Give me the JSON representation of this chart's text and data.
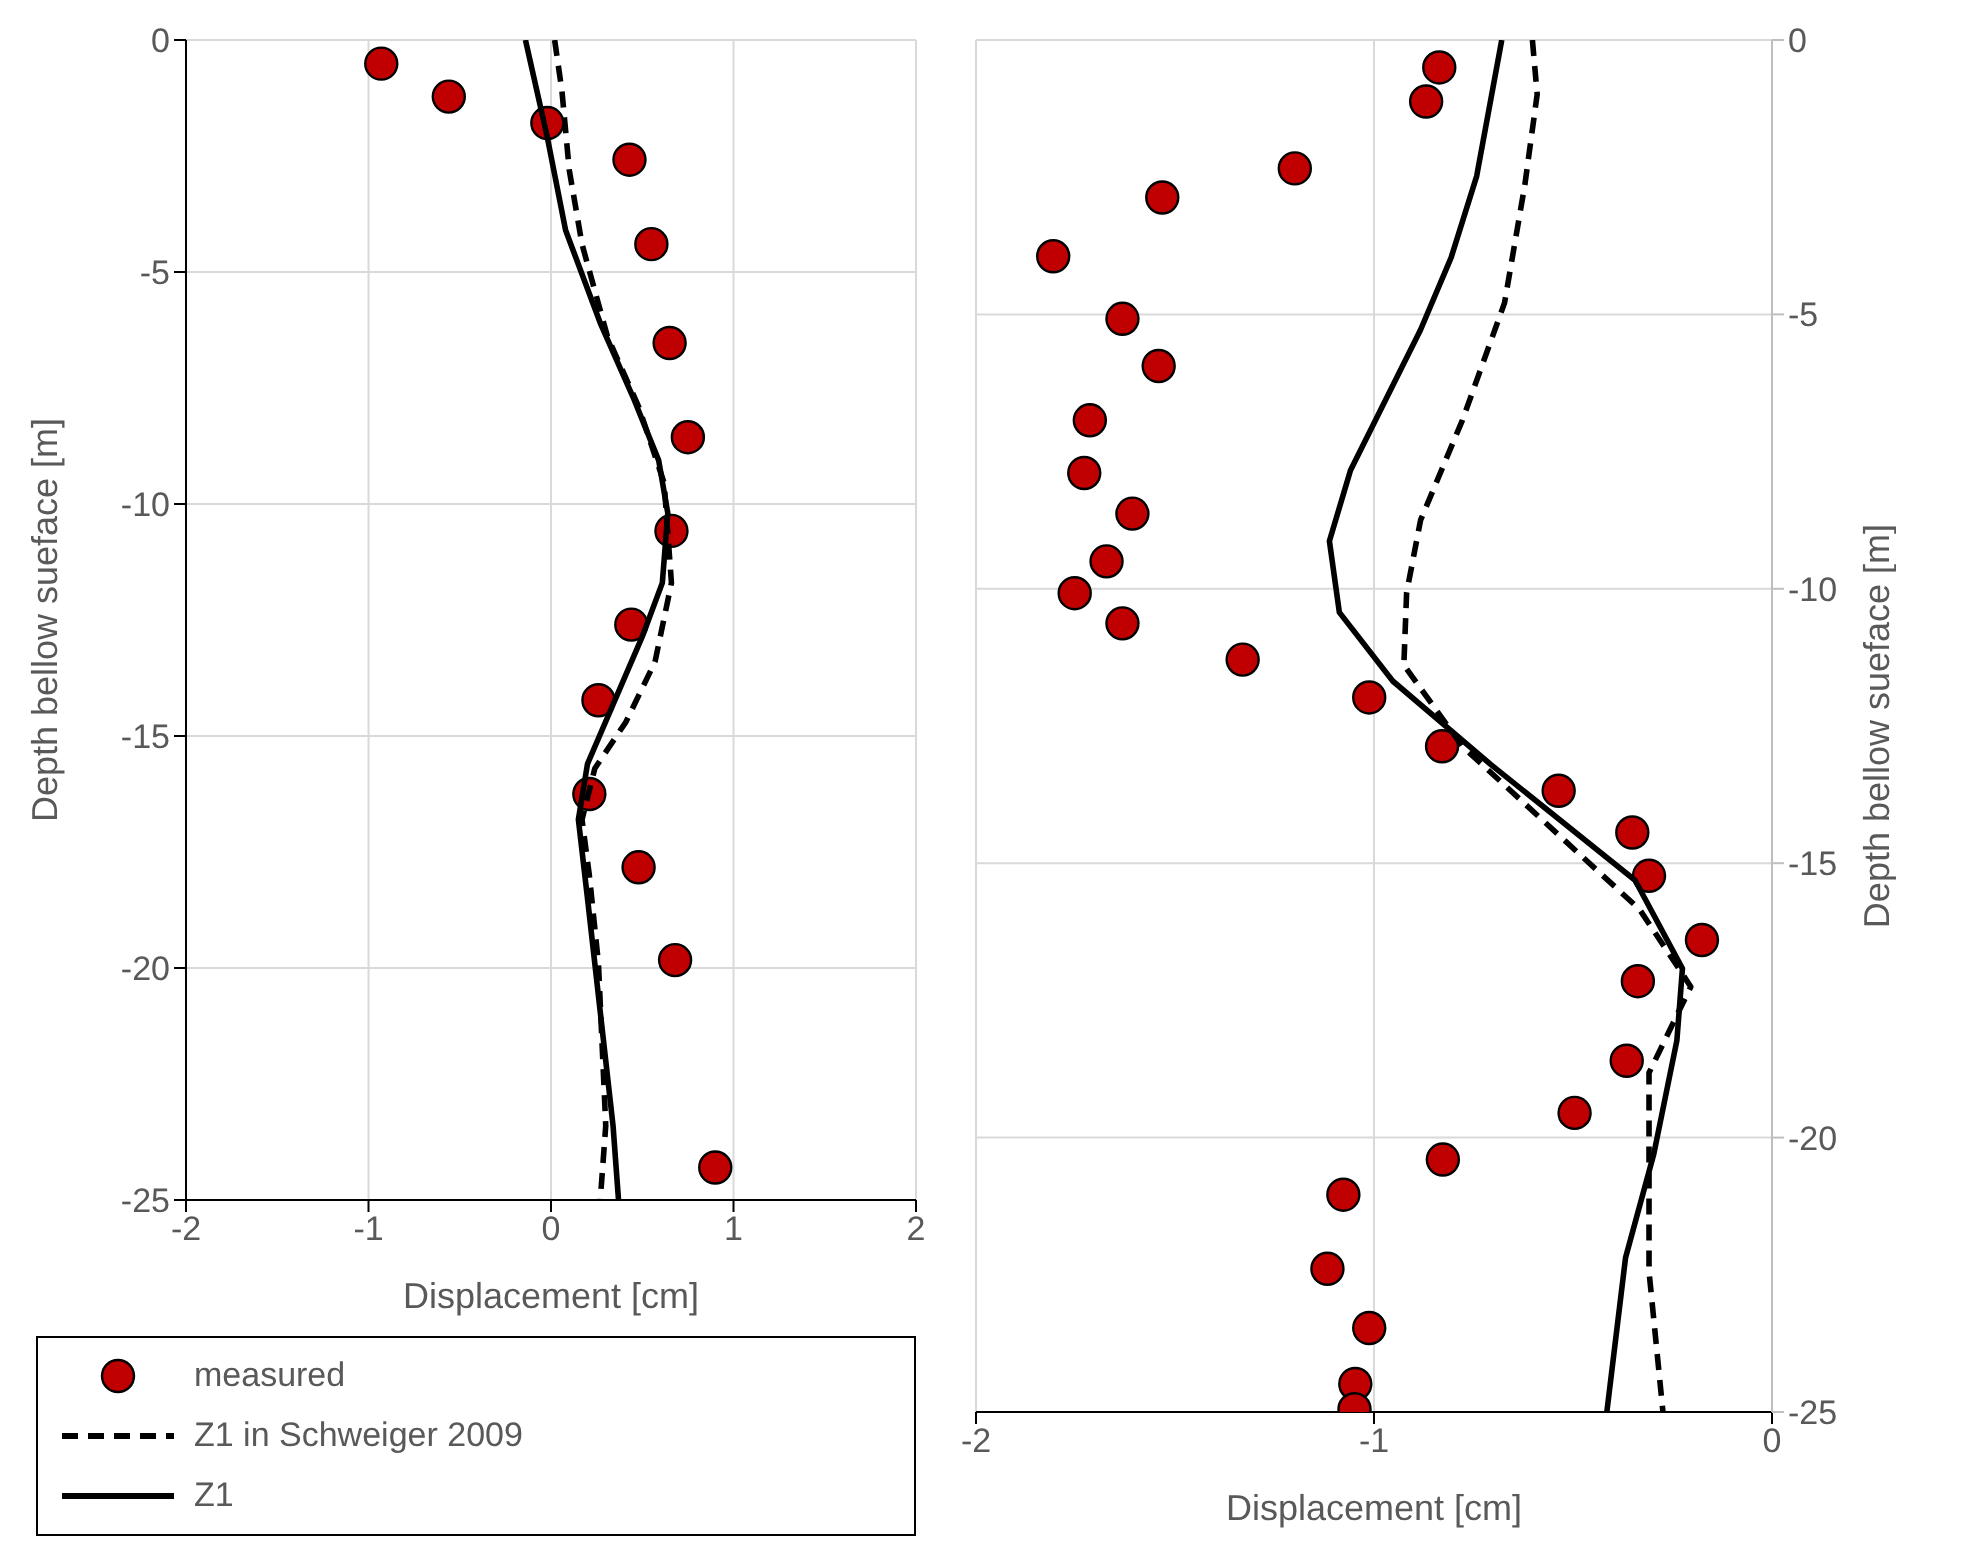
{
  "chart_data": [
    {
      "type": "scatter",
      "xlabel": "Displacement [cm]",
      "ylabel": "Depth bellow sueface  [m]",
      "xlim": [
        -2,
        2
      ],
      "xticks": [
        -2,
        -1,
        0,
        1,
        2
      ],
      "ylim": [
        -25,
        0
      ],
      "yticks": [
        0,
        -5,
        -10,
        -15,
        -20,
        -25
      ],
      "grid": true,
      "legend": "bottom",
      "series": [
        {
          "name": "measured",
          "type": "scatter",
          "marker": "circle",
          "color": "#c00000",
          "x": [
            -0.93,
            -0.56,
            -0.02,
            0.43,
            0.55,
            0.65,
            0.75,
            0.66,
            0.44,
            0.26,
            0.21,
            0.48,
            0.68,
            0.9
          ],
          "values": [
            -0.51,
            -1.22,
            -1.79,
            -2.58,
            -4.4,
            -6.53,
            -8.56,
            -10.58,
            -12.6,
            -14.23,
            -16.25,
            -17.83,
            -19.83,
            -24.3
          ]
        },
        {
          "name": "Z1 in Schweiger 2009",
          "type": "line",
          "marker": "none",
          "line_style": "dashed",
          "color": "#000000",
          "x": [
            0.02,
            0.06,
            0.1,
            0.17,
            0.31,
            0.48,
            0.62,
            0.66,
            0.57,
            0.41,
            0.24,
            0.17,
            0.21,
            0.26,
            0.3,
            0.27
          ],
          "values": [
            0,
            -1.1,
            -2.8,
            -4.4,
            -6.4,
            -7.9,
            -9.55,
            -11.7,
            -13.4,
            -14.7,
            -15.7,
            -16.8,
            -18,
            -19.9,
            -23.4,
            -25
          ]
        },
        {
          "name": "Z1",
          "type": "line",
          "marker": "none",
          "line_style": "solid",
          "color": "#000000",
          "x": [
            -0.14,
            -0.02,
            0.08,
            0.27,
            0.45,
            0.59,
            0.64,
            0.61,
            0.5,
            0.2,
            0.15,
            0.2,
            0.24,
            0.34,
            0.37
          ],
          "values": [
            0,
            -2.1,
            -4.1,
            -6.1,
            -7.7,
            -9.06,
            -10.2,
            -11.7,
            -12.86,
            -15.6,
            -16.8,
            -18.5,
            -19.9,
            -23.4,
            -25
          ]
        }
      ]
    },
    {
      "type": "scatter",
      "xlabel": "Displacement [cm]",
      "ylabel": "Depth bellow sueface  [m]",
      "xlim": [
        -2,
        0
      ],
      "xticks": [
        -2,
        -1,
        0
      ],
      "ylim": [
        -25,
        0
      ],
      "yticks": [
        0,
        -5,
        -10,
        -15,
        -20,
        -25
      ],
      "grid": true,
      "series": [
        {
          "type": "scatter",
          "marker": "circle",
          "color": "#c00000",
          "x": [
            -0.836,
            -0.869,
            -1.199,
            -1.532,
            -1.806,
            -1.632,
            -1.541,
            -1.714,
            -1.728,
            -1.607,
            -1.672,
            -1.752,
            -1.632,
            -1.33,
            -1.012,
            -0.829,
            -0.536,
            -0.351,
            -0.309,
            -0.176,
            -0.337,
            -0.365,
            -0.496,
            -0.827,
            -1.077,
            -1.117,
            -1.012,
            -1.047,
            -1.049
          ],
          "values": [
            -0.5,
            -1.12,
            -2.34,
            -2.87,
            -3.94,
            -5.08,
            -5.94,
            -6.93,
            -7.89,
            -8.63,
            -9.5,
            -10.08,
            -10.63,
            -11.29,
            -11.98,
            -12.87,
            -13.68,
            -14.44,
            -15.23,
            -16.4,
            -17.15,
            -18.6,
            -19.55,
            -20.4,
            -21.04,
            -22.39,
            -23.47,
            -24.49,
            -24.95
          ]
        },
        {
          "type": "line",
          "marker": "none",
          "line_style": "dashed",
          "color": "#000000",
          "x": [
            -0.602,
            -0.59,
            -0.621,
            -0.672,
            -0.778,
            -0.883,
            -0.918,
            -0.925,
            -0.778,
            -0.333,
            -0.204,
            -0.309,
            -0.309,
            -0.274
          ],
          "values": [
            0,
            -0.99,
            -2.64,
            -4.79,
            -6.93,
            -8.75,
            -10.07,
            -11.39,
            -12.87,
            -15.84,
            -17.25,
            -18.82,
            -22.44,
            -25
          ]
        },
        {
          "type": "line",
          "marker": "none",
          "line_style": "solid",
          "color": "#000000",
          "x": [
            -0.679,
            -0.742,
            -0.806,
            -0.883,
            -1.059,
            -1.112,
            -1.087,
            -0.953,
            -0.707,
            -0.344,
            -0.225,
            -0.239,
            -0.297,
            -0.368,
            -0.415
          ],
          "values": [
            0,
            -2.48,
            -3.96,
            -5.28,
            -7.84,
            -9.13,
            -10.43,
            -11.68,
            -13.2,
            -15.31,
            -16.92,
            -18.23,
            -20.3,
            -22.19,
            -25
          ]
        }
      ]
    }
  ]
}
